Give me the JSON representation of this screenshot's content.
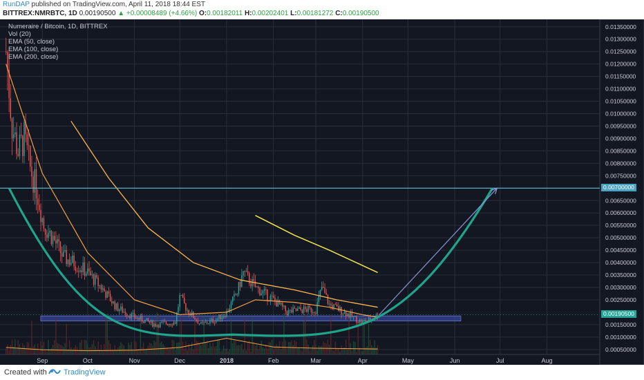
{
  "header": {
    "author": "RunDAP",
    "published": "published on TradingView.com, April 11, 2018 18:44 EST",
    "symbol": "BITTREX:NMRBTC, 1D",
    "last": "0.00190500",
    "change": "▲ +0.00008489 (+4.66%)",
    "o_label": "O:",
    "o": "0.00182011",
    "h_label": "H:",
    "h": "0.00202401",
    "l_label": "L:",
    "l": "0.00181272",
    "c_label": "C:",
    "c": "0.00190500"
  },
  "legend": [
    "Numeraire / Bitcoin, 1D, BITTREX",
    "Vol (20)",
    "EMA (50, close)",
    "EMA (100, close)",
    "EMA (200, close)"
  ],
  "footer": {
    "created": "Created with",
    "brand": "TradingView"
  },
  "colors": {
    "background": "#131722",
    "grid": "#2a2e39",
    "up": "#26a69a",
    "down": "#ef5350",
    "ema50": "#f5a142",
    "ema100": "#ffb74d",
    "ema200": "#f3e64a",
    "cup": "#1ea58c",
    "level": "#5fc2d0",
    "zone": "#3949ab",
    "arrow": "#8b95d8",
    "price_tag": "#26a69a",
    "level_tag": "#4aa3c0"
  },
  "chart_data": {
    "type": "candlestick",
    "x_tick_labels": [
      "Sep",
      "Oct",
      "Nov",
      "Dec",
      "2018",
      "Feb",
      "Mar",
      "Apr",
      "May",
      "Jun",
      "Jul",
      "Aug"
    ],
    "y_tick_labels": [
      "0.01350000",
      "0.01300000",
      "0.01250000",
      "0.01200000",
      "0.01150000",
      "0.01100000",
      "0.01050000",
      "0.01000000",
      "0.00950000",
      "0.00900000",
      "0.00850000",
      "0.00800000",
      "0.00750000",
      "0.00650000",
      "0.00600000",
      "0.00550000",
      "0.00500000",
      "0.00450000",
      "0.00400000",
      "0.00350000",
      "0.00300000",
      "0.00250000",
      "0.00150000",
      "0.00100000",
      "0.00050000"
    ],
    "ylim": [
      0.0003,
      0.0138
    ],
    "last_price_label": "0.00190500",
    "level_label": "0.00700000",
    "price_path": [
      [
        "2017-08-08",
        0.0125
      ],
      [
        "2017-08-12",
        0.0095
      ],
      [
        "2017-08-16",
        0.0085
      ],
      [
        "2017-08-20",
        0.009
      ],
      [
        "2017-08-24",
        0.0078
      ],
      [
        "2017-08-28",
        0.007
      ],
      [
        "2017-09-02",
        0.0055
      ],
      [
        "2017-09-08",
        0.005
      ],
      [
        "2017-09-15",
        0.0042
      ],
      [
        "2017-09-22",
        0.004
      ],
      [
        "2017-10-01",
        0.0036
      ],
      [
        "2017-10-10",
        0.003
      ],
      [
        "2017-10-20",
        0.0022
      ],
      [
        "2017-11-01",
        0.0018
      ],
      [
        "2017-11-15",
        0.0015
      ],
      [
        "2017-11-28",
        0.0016
      ],
      [
        "2017-12-01",
        0.0026
      ],
      [
        "2017-12-06",
        0.0021
      ],
      [
        "2017-12-15",
        0.0015
      ],
      [
        "2017-12-25",
        0.0017
      ],
      [
        "2018-01-01",
        0.002
      ],
      [
        "2018-01-08",
        0.0028
      ],
      [
        "2018-01-12",
        0.0036
      ],
      [
        "2018-01-20",
        0.003
      ],
      [
        "2018-02-01",
        0.0025
      ],
      [
        "2018-02-10",
        0.002
      ],
      [
        "2018-02-20",
        0.0021
      ],
      [
        "2018-03-01",
        0.0021
      ],
      [
        "2018-03-05",
        0.003
      ],
      [
        "2018-03-10",
        0.0023
      ],
      [
        "2018-03-20",
        0.002
      ],
      [
        "2018-03-31",
        0.0016
      ],
      [
        "2018-04-07",
        0.0017
      ],
      [
        "2018-04-11",
        0.0019
      ]
    ],
    "ema50": [
      [
        "2017-08-08",
        0.012
      ],
      [
        "2017-09-01",
        0.0076
      ],
      [
        "2017-10-01",
        0.0044
      ],
      [
        "2017-11-01",
        0.0025
      ],
      [
        "2017-12-01",
        0.0019
      ],
      [
        "2018-01-01",
        0.002
      ],
      [
        "2018-01-20",
        0.0025
      ],
      [
        "2018-02-15",
        0.0024
      ],
      [
        "2018-03-10",
        0.0022
      ],
      [
        "2018-04-01",
        0.0019
      ],
      [
        "2018-04-11",
        0.0018
      ]
    ],
    "ema100": [
      [
        "2017-09-20",
        0.0097
      ],
      [
        "2017-10-15",
        0.0074
      ],
      [
        "2017-11-10",
        0.0054
      ],
      [
        "2017-12-10",
        0.004
      ],
      [
        "2018-01-10",
        0.0033
      ],
      [
        "2018-02-15",
        0.0029
      ],
      [
        "2018-03-15",
        0.0025
      ],
      [
        "2018-04-11",
        0.0022
      ]
    ],
    "ema200": [
      [
        "2018-01-20",
        0.0059
      ],
      [
        "2018-02-15",
        0.0051
      ],
      [
        "2018-03-10",
        0.0045
      ],
      [
        "2018-04-11",
        0.0036
      ]
    ],
    "volume_line": [
      [
        "2017-08-08",
        0.00058
      ],
      [
        "2017-09-01",
        0.00049
      ],
      [
        "2017-10-01",
        0.00045
      ],
      [
        "2017-11-01",
        0.00047
      ],
      [
        "2017-12-01",
        0.00058
      ],
      [
        "2018-01-01",
        0.00095
      ],
      [
        "2018-02-01",
        0.0006
      ],
      [
        "2018-03-01",
        0.00055
      ],
      [
        "2018-04-11",
        0.00052
      ]
    ],
    "horizontal_level": 0.007,
    "support_zone": {
      "from": "2017-08-31",
      "to": "2018-06-05",
      "low": 0.00165,
      "high": 0.00185
    },
    "cup_curve": {
      "start": [
        "2017-08-10",
        0.007
      ],
      "bottom": [
        "2018-01-05",
        0.0011
      ],
      "end": [
        "2018-06-26",
        0.007
      ]
    },
    "target_arrow": {
      "from": [
        "2018-04-12",
        0.0019
      ],
      "to": [
        "2018-06-29",
        0.007
      ]
    },
    "grid": true
  }
}
